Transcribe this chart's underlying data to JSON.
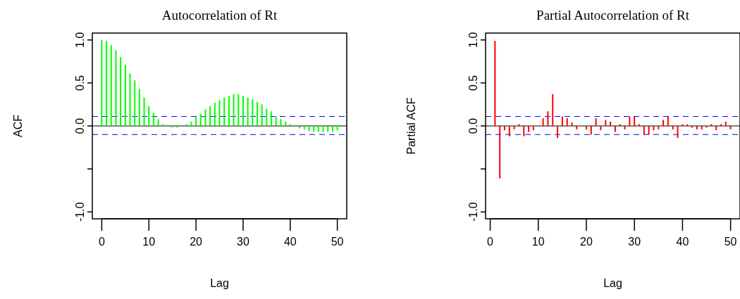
{
  "chart_data": [
    {
      "type": "bar",
      "title": "Autocorrelation of Rt",
      "xlabel": "Lag",
      "ylabel": "ACF",
      "color": "#00ff00",
      "x": [
        0,
        1,
        2,
        3,
        4,
        5,
        6,
        7,
        8,
        9,
        10,
        11,
        12,
        13,
        14,
        15,
        16,
        17,
        18,
        19,
        20,
        21,
        22,
        23,
        24,
        25,
        26,
        27,
        28,
        29,
        30,
        31,
        32,
        33,
        34,
        35,
        36,
        37,
        38,
        39,
        40,
        41,
        42,
        43,
        44,
        45,
        46,
        47,
        48,
        49,
        50
      ],
      "values": [
        1.0,
        0.99,
        0.94,
        0.88,
        0.8,
        0.71,
        0.61,
        0.53,
        0.43,
        0.33,
        0.23,
        0.15,
        0.08,
        0.02,
        -0.01,
        -0.02,
        -0.02,
        0,
        0.02,
        0.05,
        0.11,
        0.14,
        0.19,
        0.23,
        0.27,
        0.3,
        0.33,
        0.35,
        0.37,
        0.37,
        0.35,
        0.33,
        0.31,
        0.28,
        0.25,
        0.2,
        0.17,
        0.11,
        0.08,
        0.05,
        0.02,
        0,
        -0.03,
        -0.04,
        -0.06,
        -0.07,
        -0.07,
        -0.07,
        -0.07,
        -0.07,
        -0.05
      ],
      "xlim": [
        -2,
        52
      ],
      "xticks": [
        0,
        10,
        20,
        30,
        40,
        50
      ],
      "ylim": [
        -1.08,
        1.08
      ],
      "yticks": [
        {
          "value": -1,
          "label": "-1.0"
        },
        {
          "value": -0.5,
          "label": null
        },
        {
          "value": 0,
          "label": "0.0"
        },
        {
          "value": 0.5,
          "label": "0.5"
        },
        {
          "value": 1,
          "label": "1.0"
        }
      ],
      "ref_lines": [
        {
          "axis": "y",
          "value": 0,
          "color": "#000000",
          "line_style": "solid"
        },
        {
          "axis": "y",
          "value": 0.11,
          "color": "#0000ff",
          "line_style": "dashed"
        },
        {
          "axis": "y",
          "value": -0.1,
          "color": "#0000ff",
          "line_style": "dashed"
        }
      ]
    },
    {
      "type": "bar",
      "title": "Partial Autocorrelation of Rt",
      "xlabel": "Lag",
      "ylabel": "Partial ACF",
      "color": "#ff0000",
      "x": [
        1,
        2,
        3,
        4,
        5,
        6,
        7,
        8,
        9,
        10,
        11,
        12,
        13,
        14,
        15,
        16,
        17,
        18,
        19,
        20,
        21,
        22,
        23,
        24,
        25,
        26,
        27,
        28,
        29,
        30,
        31,
        32,
        33,
        34,
        35,
        36,
        37,
        38,
        39,
        40,
        41,
        42,
        43,
        44,
        45,
        46,
        47,
        48,
        49,
        50
      ],
      "values": [
        0.99,
        -0.61,
        -0.05,
        -0.12,
        -0.04,
        0.02,
        -0.12,
        -0.07,
        -0.05,
        0,
        0.09,
        0.17,
        0.37,
        -0.14,
        0.11,
        0.09,
        0.04,
        -0.04,
        0,
        -0.04,
        -0.1,
        0.09,
        -0.05,
        0.07,
        0.05,
        -0.07,
        0.02,
        -0.04,
        0.11,
        0.11,
        0.02,
        -0.1,
        -0.1,
        -0.05,
        -0.04,
        0.07,
        0.11,
        -0.04,
        -0.14,
        0.02,
        0.02,
        -0.02,
        -0.04,
        -0.04,
        -0.02,
        0.02,
        -0.05,
        0.02,
        0.05,
        -0.04
      ],
      "xlim": [
        -0.96,
        51.96
      ],
      "xticks": [
        0,
        10,
        20,
        30,
        40,
        50
      ],
      "ylim": [
        -1.08,
        1.08
      ],
      "yticks": [
        {
          "value": -1,
          "label": "-1.0"
        },
        {
          "value": -0.5,
          "label": null
        },
        {
          "value": 0,
          "label": "0.0"
        },
        {
          "value": 0.5,
          "label": "0.5"
        },
        {
          "value": 1,
          "label": "1.0"
        }
      ],
      "ref_lines": [
        {
          "axis": "y",
          "value": 0,
          "color": "#000000",
          "line_style": "solid"
        },
        {
          "axis": "y",
          "value": 0.11,
          "color": "#0000ff",
          "line_style": "dashed"
        },
        {
          "axis": "y",
          "value": -0.1,
          "color": "#0000ff",
          "line_style": "dashed"
        }
      ]
    }
  ]
}
